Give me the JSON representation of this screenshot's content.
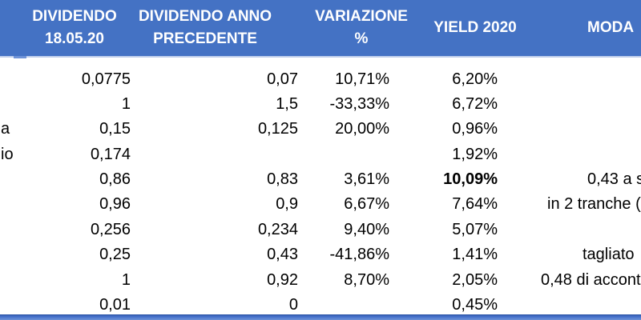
{
  "colors": {
    "header_bg": "#4472C4",
    "header_text": "#FFFFFF",
    "body_text": "#000000",
    "bottom_bar": "#3A65C5"
  },
  "table": {
    "headers": {
      "col1_line1": "DIVIDENDO",
      "col1_line2": "18.05.20",
      "col2_line1": "DIVIDENDO ANNO",
      "col2_line2": "PRECEDENTE",
      "col3_line1": "VARIAZIONE",
      "col3_line2": "%",
      "col4": "YIELD 2020",
      "col5": "MODA"
    },
    "rows": [
      {
        "label": "",
        "dividendo": "0,0775",
        "precedente": "0,07",
        "variazione": "10,71%",
        "yield": "6,20%",
        "moda": ""
      },
      {
        "label": "",
        "dividendo": "1",
        "precedente": "1,5",
        "variazione": "-33,33%",
        "yield": "6,72%",
        "moda": ""
      },
      {
        "label": "a",
        "dividendo": "0,15",
        "precedente": "0,125",
        "variazione": "20,00%",
        "yield": "0,96%",
        "moda": ""
      },
      {
        "label": "io",
        "dividendo": "0,174",
        "precedente": "",
        "variazione": "",
        "yield": "1,92%",
        "moda": ""
      },
      {
        "label": "",
        "dividendo": "0,86",
        "precedente": "0,83",
        "variazione": "3,61%",
        "yield": "10,09%",
        "moda": "0,43 a s"
      },
      {
        "label": "",
        "dividendo": "0,96",
        "precedente": "0,9",
        "variazione": "6,67%",
        "yield": "7,64%",
        "moda": "in 2 tranche ("
      },
      {
        "label": "",
        "dividendo": "0,256",
        "precedente": "0,234",
        "variazione": "9,40%",
        "yield": "5,07%",
        "moda": ""
      },
      {
        "label": "",
        "dividendo": "0,25",
        "precedente": "0,43",
        "variazione": "-41,86%",
        "yield": "1,41%",
        "moda": "tagliato"
      },
      {
        "label": "",
        "dividendo": "1",
        "precedente": "0,92",
        "variazione": "8,70%",
        "yield": "2,05%",
        "moda": "0,48 di accont"
      },
      {
        "label": "",
        "dividendo": "0,01",
        "precedente": "0",
        "variazione": "",
        "yield": "0,45%",
        "moda": ""
      }
    ]
  }
}
